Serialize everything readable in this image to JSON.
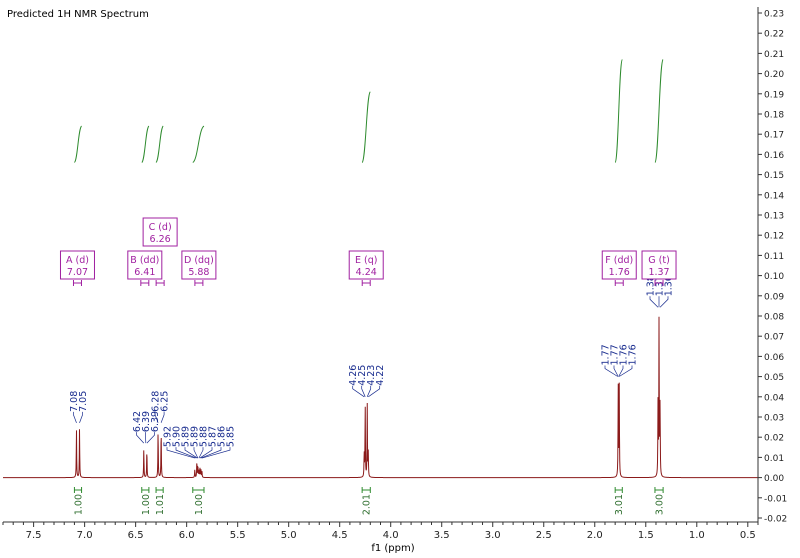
{
  "chart_data": {
    "type": "line",
    "title": "Predicted 1H NMR Spectrum",
    "xlabel": "f1 (ppm)",
    "ylabel": "",
    "x_reversed": true,
    "xlim": [
      7.8,
      0.4
    ],
    "ylim": [
      -0.02,
      0.23
    ],
    "x_ticks": [
      "7.5",
      "7.0",
      "6.5",
      "6.0",
      "5.5",
      "5.0",
      "4.5",
      "4.0",
      "3.5",
      "3.0",
      "2.5",
      "2.0",
      "1.5",
      "1.0",
      "0.5"
    ],
    "y_ticks": [
      "-0.02",
      "-0.01",
      "0.00",
      "0.01",
      "0.02",
      "0.03",
      "0.04",
      "0.05",
      "0.06",
      "0.07",
      "0.08",
      "0.09",
      "0.10",
      "0.11",
      "0.12",
      "0.13",
      "0.14",
      "0.15",
      "0.16",
      "0.17",
      "0.18",
      "0.19",
      "0.20",
      "0.21",
      "0.22",
      "0.23"
    ],
    "series": [
      {
        "peaks": [
          {
            "ppm": 7.08,
            "height": 0.024
          },
          {
            "ppm": 7.05,
            "height": 0.024
          },
          {
            "ppm": 6.42,
            "height": 0.014
          },
          {
            "ppm": 6.39,
            "height": 0.014
          },
          {
            "ppm": 6.28,
            "height": 0.024
          },
          {
            "ppm": 6.25,
            "height": 0.024
          },
          {
            "ppm": 5.92,
            "height": 0.004
          },
          {
            "ppm": 5.9,
            "height": 0.008
          },
          {
            "ppm": 5.89,
            "height": 0.006
          },
          {
            "ppm": 5.88,
            "height": 0.004
          },
          {
            "ppm": 5.87,
            "height": 0.005
          },
          {
            "ppm": 5.86,
            "height": 0.004
          },
          {
            "ppm": 5.85,
            "height": 0.003
          },
          {
            "ppm": 4.26,
            "height": 0.012
          },
          {
            "ppm": 4.25,
            "height": 0.036
          },
          {
            "ppm": 4.23,
            "height": 0.036
          },
          {
            "ppm": 4.22,
            "height": 0.012
          },
          {
            "ppm": 1.77,
            "height": 0.045
          },
          {
            "ppm": 1.76,
            "height": 0.045
          },
          {
            "ppm": 1.38,
            "height": 0.036
          },
          {
            "ppm": 1.37,
            "height": 0.078
          },
          {
            "ppm": 1.36,
            "height": 0.036
          }
        ],
        "color": "#8b1a1a"
      }
    ],
    "peak_labels": [
      {
        "text": "7.08",
        "ppm": 7.08
      },
      {
        "text": "7.05",
        "ppm": 7.05
      },
      {
        "text": "6.42",
        "ppm": 6.42
      },
      {
        "text": "6.39",
        "ppm": 6.4
      },
      {
        "text": "6.39",
        "ppm": 6.39
      },
      {
        "text": "6.28",
        "ppm": 6.28
      },
      {
        "text": "6.25",
        "ppm": 6.25
      },
      {
        "text": "5.92",
        "ppm": 5.92
      },
      {
        "text": "5.90",
        "ppm": 5.905
      },
      {
        "text": "5.89",
        "ppm": 5.895
      },
      {
        "text": "5.89",
        "ppm": 5.89
      },
      {
        "text": "5.88",
        "ppm": 5.88
      },
      {
        "text": "5.87",
        "ppm": 5.87
      },
      {
        "text": "5.86",
        "ppm": 5.86
      },
      {
        "text": "5.85",
        "ppm": 5.85
      },
      {
        "text": "4.26",
        "ppm": 4.26
      },
      {
        "text": "4.25",
        "ppm": 4.25
      },
      {
        "text": "4.23",
        "ppm": 4.23
      },
      {
        "text": "4.22",
        "ppm": 4.22
      },
      {
        "text": "1.77",
        "ppm": 1.775
      },
      {
        "text": "1.77",
        "ppm": 1.77
      },
      {
        "text": "1.76",
        "ppm": 1.765
      },
      {
        "text": "1.76",
        "ppm": 1.76
      },
      {
        "text": "1.38",
        "ppm": 1.38
      },
      {
        "text": "1.37",
        "ppm": 1.37
      },
      {
        "text": "1.36",
        "ppm": 1.36
      }
    ],
    "multiplets": [
      {
        "label": "A (d)",
        "shift": "7.07",
        "ppm": 7.07
      },
      {
        "label": "B (dd)",
        "shift": "6.41",
        "ppm": 6.41
      },
      {
        "label": "C (d)",
        "shift": "6.26",
        "ppm": 6.26
      },
      {
        "label": "D (dq)",
        "shift": "5.88",
        "ppm": 5.88
      },
      {
        "label": "E (q)",
        "shift": "4.24",
        "ppm": 4.24
      },
      {
        "label": "F (dd)",
        "shift": "1.76",
        "ppm": 1.76
      },
      {
        "label": "G (t)",
        "shift": "1.37",
        "ppm": 1.37
      }
    ],
    "integrals": [
      {
        "value": "1.00",
        "from": 7.1,
        "to": 7.03,
        "y_start": 0.156,
        "y_end": 0.174
      },
      {
        "value": "1.00",
        "from": 6.44,
        "to": 6.37,
        "y_start": 0.156,
        "y_end": 0.174
      },
      {
        "value": "1.01",
        "from": 6.3,
        "to": 6.23,
        "y_start": 0.156,
        "y_end": 0.174
      },
      {
        "value": "1.00",
        "from": 5.94,
        "to": 5.83,
        "y_start": 0.156,
        "y_end": 0.174
      },
      {
        "value": "2.01",
        "from": 4.28,
        "to": 4.2,
        "y_start": 0.156,
        "y_end": 0.191
      },
      {
        "value": "3.01",
        "from": 1.8,
        "to": 1.73,
        "y_start": 0.156,
        "y_end": 0.207
      },
      {
        "value": "3.00",
        "from": 1.41,
        "to": 1.33,
        "y_start": 0.156,
        "y_end": 0.207
      }
    ],
    "colors": {
      "spectrum": "#8b1a1a",
      "peak_label": "#1a2d8f",
      "multiplet": "#a020a0",
      "integral_curve": "#2e8b2e",
      "integral_label": "#2e6e2e",
      "axis": "#333333"
    },
    "grid": false
  }
}
